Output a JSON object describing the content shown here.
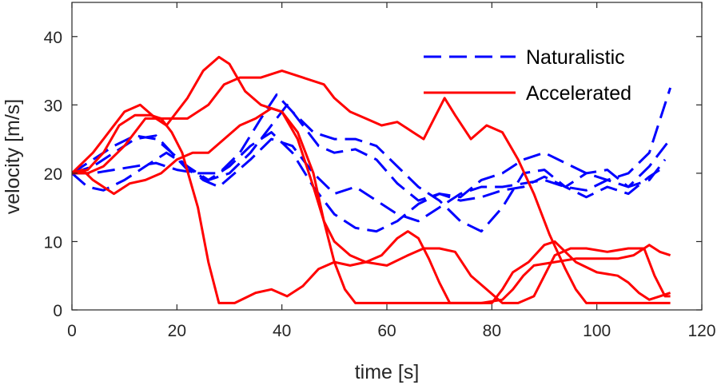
{
  "chart_data": {
    "type": "line",
    "title": "",
    "xlabel": "time [s]",
    "ylabel": "velocity [m/s]",
    "xlim": [
      0,
      120
    ],
    "ylim": [
      0,
      45
    ],
    "xticks": [
      0,
      20,
      40,
      60,
      80,
      100,
      120
    ],
    "yticks": [
      0,
      10,
      20,
      30,
      40
    ],
    "grid": false,
    "legend_position": "top-right",
    "legend": [
      {
        "label": "Naturalistic",
        "style": "dashed",
        "color": "#0000ff"
      },
      {
        "label": "Accelerated",
        "style": "solid",
        "color": "#ff0000"
      }
    ],
    "series": [
      {
        "group": "Naturalistic",
        "color": "#0000ff",
        "style": "dashed",
        "points": [
          [
            0,
            20
          ],
          [
            3,
            18
          ],
          [
            6,
            17.5
          ],
          [
            10,
            19
          ],
          [
            14,
            21
          ],
          [
            18,
            23
          ],
          [
            22,
            21
          ],
          [
            26,
            19
          ],
          [
            30,
            20
          ],
          [
            34,
            23
          ],
          [
            38,
            27
          ],
          [
            41,
            30
          ],
          [
            44,
            27
          ],
          [
            47,
            24
          ],
          [
            50,
            23
          ],
          [
            54,
            23.5
          ],
          [
            58,
            22
          ],
          [
            62,
            18.5
          ],
          [
            66,
            16
          ],
          [
            70,
            17
          ],
          [
            74,
            16.5
          ],
          [
            78,
            19
          ],
          [
            82,
            20
          ],
          [
            86,
            22
          ],
          [
            90,
            23
          ],
          [
            94,
            21.5
          ],
          [
            98,
            20
          ],
          [
            102,
            19
          ],
          [
            106,
            18
          ],
          [
            110,
            21
          ],
          [
            114,
            25
          ]
        ]
      },
      {
        "group": "Naturalistic",
        "color": "#0000ff",
        "style": "dashed",
        "points": [
          [
            0,
            20
          ],
          [
            4,
            22
          ],
          [
            8,
            24
          ],
          [
            12,
            25.5
          ],
          [
            16,
            25
          ],
          [
            19,
            23
          ],
          [
            22,
            21
          ],
          [
            25,
            19
          ],
          [
            28,
            18
          ],
          [
            31,
            20
          ],
          [
            34,
            22
          ],
          [
            38,
            25
          ],
          [
            42,
            24
          ],
          [
            46,
            20
          ],
          [
            50,
            17
          ],
          [
            54,
            18
          ],
          [
            58,
            16
          ],
          [
            62,
            14
          ],
          [
            66,
            13
          ],
          [
            70,
            15
          ],
          [
            74,
            17
          ],
          [
            78,
            18
          ],
          [
            82,
            18
          ],
          [
            86,
            18.5
          ],
          [
            90,
            19
          ],
          [
            94,
            18
          ],
          [
            98,
            17.5
          ],
          [
            102,
            19
          ],
          [
            106,
            20
          ],
          [
            110,
            23
          ],
          [
            114,
            32.5
          ]
        ]
      },
      {
        "group": "Naturalistic",
        "color": "#0000ff",
        "style": "dashed",
        "points": [
          [
            0,
            20
          ],
          [
            4,
            21
          ],
          [
            8,
            23
          ],
          [
            12,
            25
          ],
          [
            16,
            25.5
          ],
          [
            19,
            23
          ],
          [
            22,
            20.5
          ],
          [
            26,
            19
          ],
          [
            30,
            21
          ],
          [
            34,
            24
          ],
          [
            38,
            26
          ],
          [
            42,
            23
          ],
          [
            46,
            18
          ],
          [
            50,
            14
          ],
          [
            54,
            12
          ],
          [
            58,
            11.5
          ],
          [
            62,
            13
          ],
          [
            66,
            15.5
          ],
          [
            70,
            17
          ],
          [
            74,
            16
          ],
          [
            78,
            16.5
          ],
          [
            82,
            17.5
          ],
          [
            86,
            18
          ],
          [
            90,
            19.5
          ],
          [
            94,
            18
          ],
          [
            98,
            16.5
          ],
          [
            102,
            18
          ],
          [
            106,
            17
          ],
          [
            110,
            19.5
          ],
          [
            113,
            21
          ]
        ]
      },
      {
        "group": "Naturalistic",
        "color": "#0000ff",
        "style": "dashed",
        "points": [
          [
            0,
            20
          ],
          [
            4,
            20
          ],
          [
            8,
            20.5
          ],
          [
            12,
            21
          ],
          [
            16,
            21.5
          ],
          [
            20,
            20.5
          ],
          [
            24,
            20
          ],
          [
            28,
            20
          ],
          [
            32,
            23
          ],
          [
            36,
            28
          ],
          [
            39,
            31.5
          ],
          [
            42,
            29
          ],
          [
            46,
            26
          ],
          [
            50,
            25
          ],
          [
            54,
            25
          ],
          [
            58,
            24
          ],
          [
            62,
            21
          ],
          [
            66,
            18
          ],
          [
            70,
            16
          ],
          [
            74,
            13
          ],
          [
            78,
            11.5
          ],
          [
            82,
            15
          ],
          [
            86,
            20
          ],
          [
            90,
            20.5
          ],
          [
            94,
            18
          ],
          [
            98,
            20
          ],
          [
            102,
            20.5
          ],
          [
            106,
            18
          ],
          [
            110,
            19
          ],
          [
            113,
            22
          ]
        ]
      },
      {
        "group": "Accelerated",
        "color": "#ff0000",
        "style": "solid",
        "points": [
          [
            0,
            20
          ],
          [
            3,
            20.5
          ],
          [
            6,
            23
          ],
          [
            9,
            27
          ],
          [
            12,
            28.5
          ],
          [
            15,
            28.5
          ],
          [
            17,
            28
          ],
          [
            19,
            26
          ],
          [
            21,
            23
          ],
          [
            24,
            15
          ],
          [
            26,
            7
          ],
          [
            28,
            1
          ],
          [
            31,
            1
          ],
          [
            35,
            2.5
          ],
          [
            38,
            3
          ],
          [
            41,
            2
          ],
          [
            44,
            3.5
          ],
          [
            47,
            6
          ],
          [
            50,
            7
          ],
          [
            53,
            6.5
          ],
          [
            56,
            7
          ],
          [
            59,
            8
          ],
          [
            62,
            10.5
          ],
          [
            64,
            11.5
          ],
          [
            66,
            10.5
          ],
          [
            68,
            7.5
          ],
          [
            70,
            4
          ],
          [
            72,
            1
          ],
          [
            76,
            1
          ],
          [
            80,
            1
          ],
          [
            82,
            3
          ],
          [
            84,
            5.5
          ],
          [
            87,
            7
          ],
          [
            90,
            9.5
          ],
          [
            92,
            10
          ],
          [
            94,
            8.5
          ],
          [
            96,
            7
          ],
          [
            100,
            5.5
          ],
          [
            104,
            5
          ],
          [
            106,
            4
          ],
          [
            108,
            2.5
          ],
          [
            110,
            1.5
          ],
          [
            112,
            2
          ],
          [
            114,
            2.5
          ]
        ]
      },
      {
        "group": "Accelerated",
        "color": "#ff0000",
        "style": "solid",
        "points": [
          [
            0,
            20
          ],
          [
            4,
            23
          ],
          [
            7,
            26
          ],
          [
            10,
            29
          ],
          [
            13,
            30
          ],
          [
            16,
            28
          ],
          [
            18,
            27
          ],
          [
            22,
            31
          ],
          [
            25,
            35
          ],
          [
            28,
            37
          ],
          [
            30,
            36
          ],
          [
            33,
            32
          ],
          [
            36,
            30
          ],
          [
            40,
            29
          ],
          [
            43,
            26
          ],
          [
            46,
            20
          ],
          [
            48,
            13
          ],
          [
            50,
            7
          ],
          [
            52,
            3
          ],
          [
            54,
            1
          ],
          [
            58,
            1
          ],
          [
            62,
            1
          ],
          [
            66,
            1
          ],
          [
            70,
            1
          ],
          [
            74,
            1
          ],
          [
            78,
            1
          ],
          [
            82,
            1.5
          ],
          [
            84,
            3
          ],
          [
            86,
            5
          ],
          [
            88,
            6.5
          ],
          [
            92,
            7
          ],
          [
            96,
            7.5
          ],
          [
            100,
            7.5
          ],
          [
            104,
            7.5
          ],
          [
            107,
            8
          ],
          [
            110,
            9.5
          ],
          [
            112,
            8.5
          ],
          [
            114,
            8
          ]
        ]
      },
      {
        "group": "Accelerated",
        "color": "#ff0000",
        "style": "solid",
        "points": [
          [
            0,
            20
          ],
          [
            2,
            20.5
          ],
          [
            4,
            19
          ],
          [
            8,
            17
          ],
          [
            11,
            18.5
          ],
          [
            14,
            19
          ],
          [
            17,
            20
          ],
          [
            20,
            22
          ],
          [
            23,
            23
          ],
          [
            26,
            23
          ],
          [
            29,
            25
          ],
          [
            32,
            27
          ],
          [
            35,
            28
          ],
          [
            38,
            29.5
          ],
          [
            40,
            29
          ],
          [
            43,
            25
          ],
          [
            46,
            18
          ],
          [
            48,
            13
          ],
          [
            50,
            10
          ],
          [
            53,
            8
          ],
          [
            56,
            7
          ],
          [
            60,
            6.5
          ],
          [
            64,
            8
          ],
          [
            67,
            9
          ],
          [
            70,
            9
          ],
          [
            73,
            8.5
          ],
          [
            76,
            5
          ],
          [
            79,
            3
          ],
          [
            82,
            1
          ],
          [
            85,
            1
          ],
          [
            88,
            2
          ],
          [
            92,
            8
          ],
          [
            95,
            9
          ],
          [
            98,
            9
          ],
          [
            102,
            8.5
          ],
          [
            106,
            9
          ],
          [
            109,
            9
          ],
          [
            111,
            5
          ],
          [
            113,
            2
          ],
          [
            114,
            2
          ]
        ]
      },
      {
        "group": "Accelerated",
        "color": "#ff0000",
        "style": "solid",
        "points": [
          [
            0,
            20
          ],
          [
            3,
            20
          ],
          [
            6,
            21
          ],
          [
            10,
            24
          ],
          [
            14,
            28
          ],
          [
            18,
            28
          ],
          [
            22,
            28
          ],
          [
            26,
            30
          ],
          [
            29,
            33
          ],
          [
            32,
            34
          ],
          [
            36,
            34
          ],
          [
            40,
            35
          ],
          [
            44,
            34
          ],
          [
            48,
            33
          ],
          [
            50,
            31
          ],
          [
            53,
            29
          ],
          [
            56,
            28
          ],
          [
            59,
            27
          ],
          [
            62,
            27.5
          ],
          [
            65,
            26
          ],
          [
            67,
            25
          ],
          [
            69,
            28
          ],
          [
            71,
            31
          ],
          [
            73,
            28.5
          ],
          [
            76,
            25
          ],
          [
            79,
            27
          ],
          [
            82,
            26
          ],
          [
            85,
            22
          ],
          [
            88,
            17
          ],
          [
            91,
            11
          ],
          [
            94,
            6
          ],
          [
            96,
            3
          ],
          [
            98,
            1
          ],
          [
            102,
            1
          ],
          [
            106,
            1
          ],
          [
            110,
            1
          ],
          [
            114,
            1
          ]
        ]
      }
    ]
  }
}
